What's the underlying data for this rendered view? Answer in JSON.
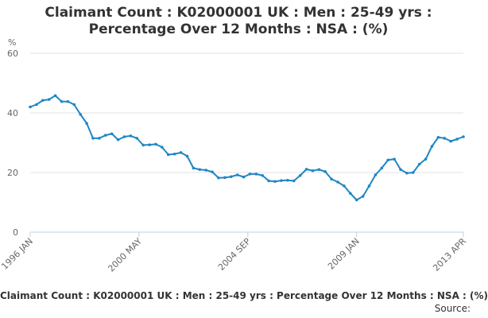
{
  "title_line1": "Claimant Count : K02000001 UK : Men : 25-49 yrs :",
  "title_line2": "Percentage Over 12 Months : NSA : (%)",
  "footer_title": "Claimant Count : K02000001 UK : Men : 25-49 yrs : Percentage Over 12 Months : NSA : (%)",
  "source_label": "Source:",
  "colors": {
    "series": "#1f86c6",
    "grid": "#e0e0e0",
    "axis_line": "#c0d0e0",
    "text": "#666666"
  },
  "chart_data": {
    "type": "line",
    "title": "Claimant Count : K02000001 UK : Men : 25-49 yrs : Percentage Over 12 Months : NSA : (%)",
    "ylabel": "%",
    "xlabel": "",
    "ylim": [
      0,
      60
    ],
    "yticks": [
      0,
      20,
      40,
      60
    ],
    "xlim": [
      "1996 JAN",
      "2013 APR"
    ],
    "xticks": [
      "1996 JAN",
      "2000 MAY",
      "2004 SEP",
      "2009 JAN",
      "2013 APR"
    ],
    "grid": true,
    "legend": "none",
    "series": [
      {
        "x": [
          "1996 JAN",
          "1996 APR",
          "1996 JUL",
          "1996 OCT",
          "1997 JAN",
          "1997 APR",
          "1997 JUL",
          "1997 OCT",
          "1998 JAN",
          "1998 APR",
          "1998 JUL",
          "1998 OCT",
          "1999 JAN",
          "1999 APR",
          "1999 JUL",
          "1999 OCT",
          "2000 JAN",
          "2000 APR",
          "2000 JUL",
          "2000 OCT",
          "2001 JAN",
          "2001 APR",
          "2001 JUL",
          "2001 OCT",
          "2002 JAN",
          "2002 APR",
          "2002 JUL",
          "2002 OCT",
          "2003 JAN",
          "2003 APR",
          "2003 JUL",
          "2003 OCT",
          "2004 JAN",
          "2004 APR",
          "2004 JUL",
          "2004 OCT",
          "2005 JAN",
          "2005 APR",
          "2005 JUL",
          "2005 OCT",
          "2006 JAN",
          "2006 APR",
          "2006 JUL",
          "2006 OCT",
          "2007 JAN",
          "2007 APR",
          "2007 JUL",
          "2007 OCT",
          "2008 JAN",
          "2008 APR",
          "2008 JUL",
          "2008 OCT",
          "2009 JAN",
          "2009 APR",
          "2009 JUL",
          "2009 OCT",
          "2010 JAN",
          "2010 APR",
          "2010 JUL",
          "2010 OCT",
          "2011 JAN",
          "2011 APR",
          "2011 JUL",
          "2011 OCT",
          "2012 JAN",
          "2012 APR",
          "2012 JUL",
          "2012 OCT",
          "2013 JAN",
          "2013 APR"
        ],
        "values": [
          42,
          42.8,
          44.2,
          44.5,
          45.8,
          43.8,
          43.8,
          42.8,
          39.5,
          36.5,
          31.5,
          31.5,
          32.5,
          33,
          31,
          32,
          32.3,
          31.5,
          29.2,
          29.3,
          29.5,
          28.5,
          26,
          26.2,
          26.7,
          25.5,
          21.5,
          21,
          20.8,
          20.2,
          18.2,
          18.3,
          18.6,
          19.2,
          18.5,
          19.5,
          19.5,
          19,
          17.2,
          17,
          17.3,
          17.4,
          17.2,
          19,
          21.1,
          20.6,
          21,
          20.3,
          17.8,
          16.8,
          15.5,
          13,
          10.8,
          12,
          15.5,
          19.2,
          21.5,
          24.2,
          24.5,
          21,
          19.8,
          20,
          22.8,
          24.5,
          28.8,
          31.8,
          31.5,
          30.5,
          31.2,
          32
        ]
      }
    ]
  }
}
